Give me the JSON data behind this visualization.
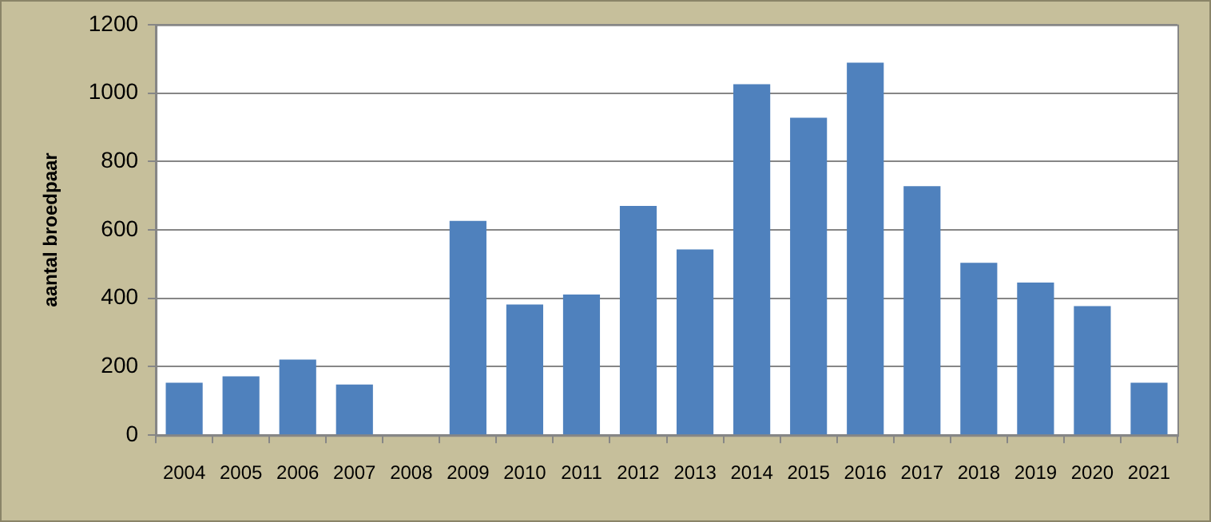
{
  "chart_data": {
    "type": "bar",
    "ylabel": "aantal broedpaar",
    "categories": [
      "2004",
      "2005",
      "2006",
      "2007",
      "2008",
      "2009",
      "2010",
      "2011",
      "2012",
      "2013",
      "2014",
      "2015",
      "2016",
      "2017",
      "2018",
      "2019",
      "2020",
      "2021"
    ],
    "values": [
      153,
      172,
      221,
      148,
      null,
      626,
      382,
      411,
      670,
      543,
      1026,
      928,
      1089,
      728,
      504,
      446,
      377,
      153
    ],
    "color": "#4f81bd",
    "ylim": [
      0,
      1200
    ],
    "yticks": [
      0,
      200,
      400,
      600,
      800,
      1000,
      1200
    ],
    "grid": "y",
    "legend": false
  }
}
